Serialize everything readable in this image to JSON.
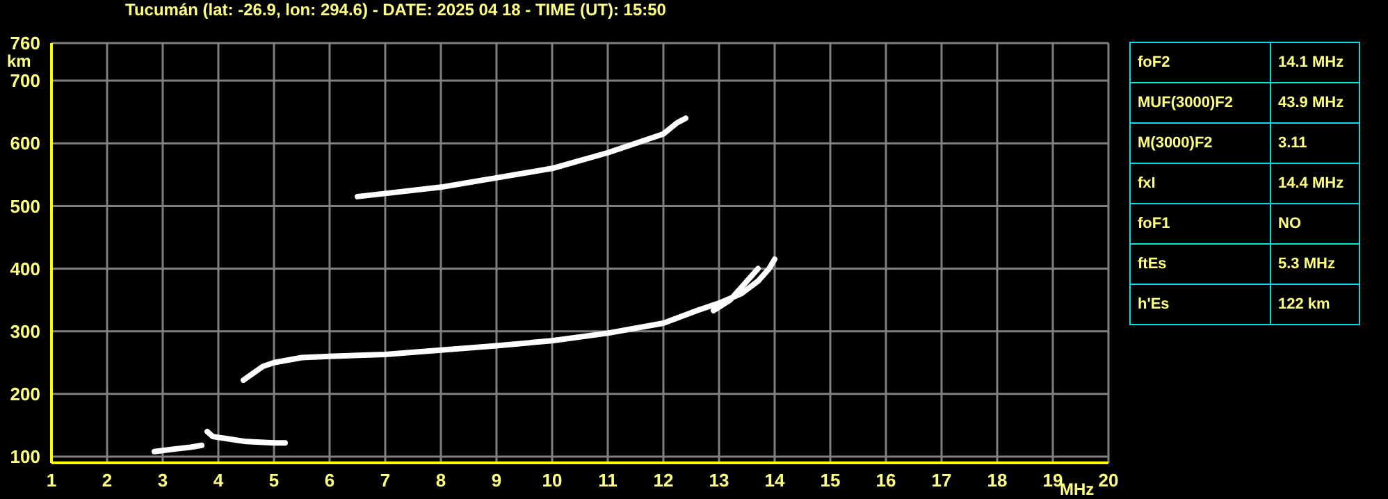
{
  "chart_data": [
    {
      "type": "line",
      "title": "Tucumán (lat: -26.9, lon: 294.6) - DATE: 2025 04 18 - TIME (UT): 15:50",
      "xlabel": "MHz",
      "ylabel": "km",
      "xlim": [
        1,
        20
      ],
      "xticks": [
        1,
        2,
        3,
        4,
        5,
        6,
        7,
        8,
        9,
        10,
        11,
        12,
        13,
        14,
        15,
        16,
        17,
        18,
        19,
        20
      ],
      "ylim": [
        90,
        760
      ],
      "yticks": [
        100,
        200,
        300,
        400,
        500,
        600,
        700,
        760
      ],
      "grid": true,
      "marker": "none",
      "line_style": "solid",
      "series": [
        {
          "color": "#ffffff",
          "x": [
            2.85,
            3.2,
            3.5,
            3.7
          ],
          "values": [
            108,
            112,
            115,
            118
          ]
        },
        {
          "color": "#ffffff",
          "x": [
            3.8,
            3.9,
            4.2,
            4.5,
            5.0,
            5.2
          ],
          "values": [
            140,
            132,
            128,
            124,
            122,
            122
          ]
        },
        {
          "color": "#ffffff",
          "x": [
            4.45,
            4.8,
            5.0,
            5.5,
            6,
            7,
            8,
            9,
            10,
            11,
            12,
            12.6,
            13.0,
            13.4,
            13.7,
            13.9,
            14.0
          ],
          "values": [
            222,
            244,
            250,
            258,
            260,
            263,
            270,
            277,
            285,
            297,
            313,
            333,
            345,
            360,
            380,
            400,
            415
          ]
        },
        {
          "color": "#ffffff",
          "x": [
            12.9,
            13.2,
            13.45,
            13.7
          ],
          "values": [
            333,
            350,
            375,
            400
          ]
        },
        {
          "color": "#ffffff",
          "x": [
            6.5,
            7,
            8,
            9,
            10,
            11,
            11.5,
            12,
            12.25,
            12.4
          ],
          "values": [
            515,
            520,
            530,
            545,
            560,
            585,
            600,
            615,
            633,
            640
          ]
        }
      ]
    },
    {
      "type": "other",
      "annotations": [
        "foF2",
        "14.1 MHz",
        "MUF(3000)F2",
        "43.9 MHz",
        "M(3000)F2",
        "3.11",
        "fxI",
        "14.4 MHz",
        "foF1",
        "NO",
        "ftEs",
        "5.3 MHz",
        "h'Es",
        "122 km"
      ]
    }
  ]
}
